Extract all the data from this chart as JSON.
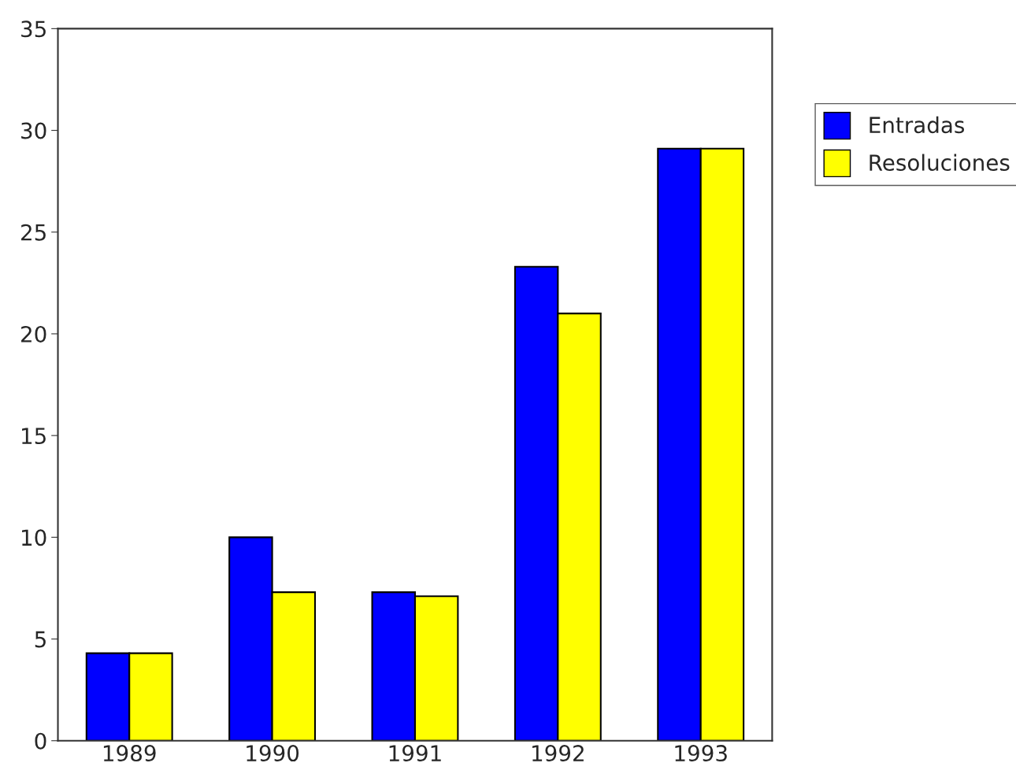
{
  "chart_data": {
    "type": "bar",
    "categories": [
      "1989",
      "1990",
      "1991",
      "1992",
      "1993"
    ],
    "series": [
      {
        "name": "Entradas",
        "color": "#0000ff",
        "values": [
          4.3,
          10,
          7.3,
          23.3,
          29.1
        ]
      },
      {
        "name": "Resoluciones",
        "color": "#ffff00",
        "values": [
          4.3,
          7.3,
          7.1,
          21,
          29.1
        ]
      }
    ],
    "ylim": [
      0,
      35
    ],
    "yticks": [
      0,
      5,
      10,
      15,
      20,
      25,
      30,
      35
    ],
    "grid": false,
    "legend": "top right"
  }
}
